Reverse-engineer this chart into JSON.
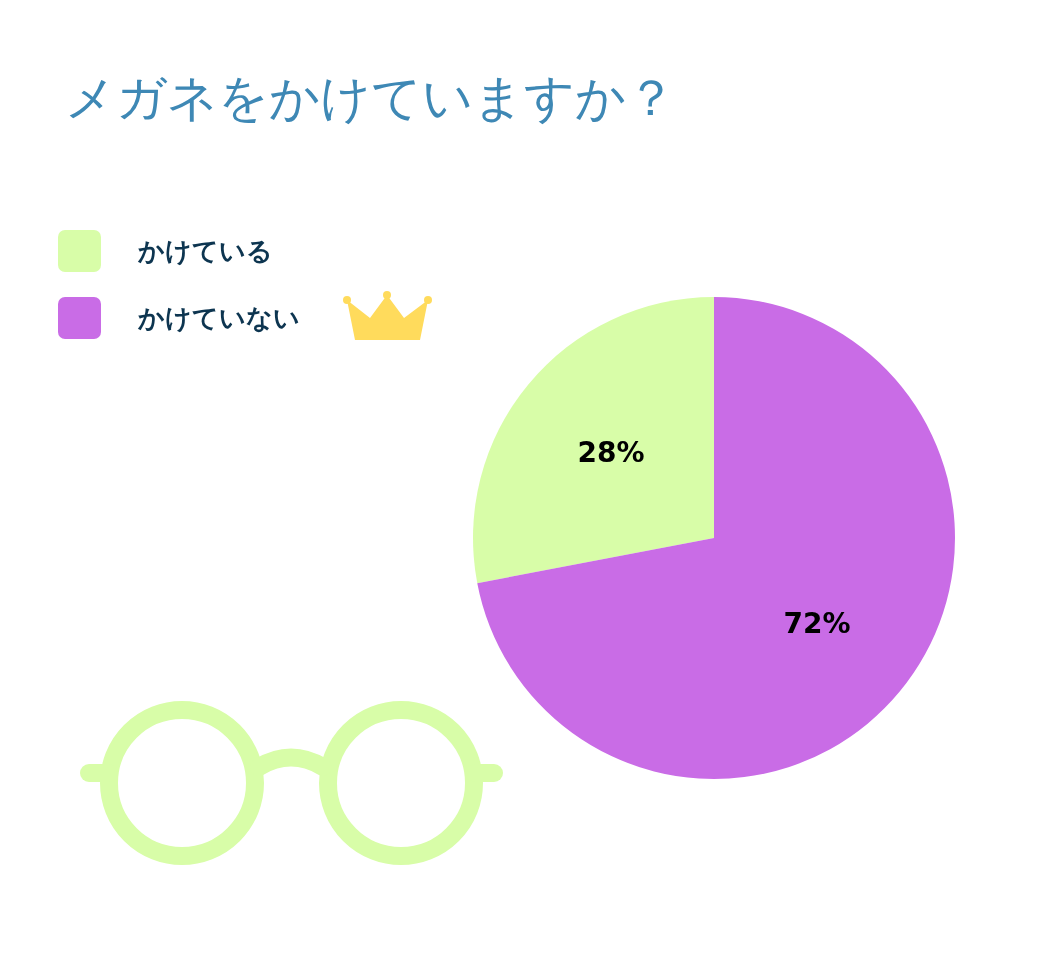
{
  "chart_data": {
    "type": "pie",
    "title": "メガネをかけていますか？",
    "categories": [
      "かけている",
      "かけていない"
    ],
    "values": [
      28,
      72
    ],
    "colors": [
      "#d8fda8",
      "#c96ce6"
    ],
    "value_labels": [
      "28%",
      "72%"
    ],
    "legend": "top left"
  }
}
